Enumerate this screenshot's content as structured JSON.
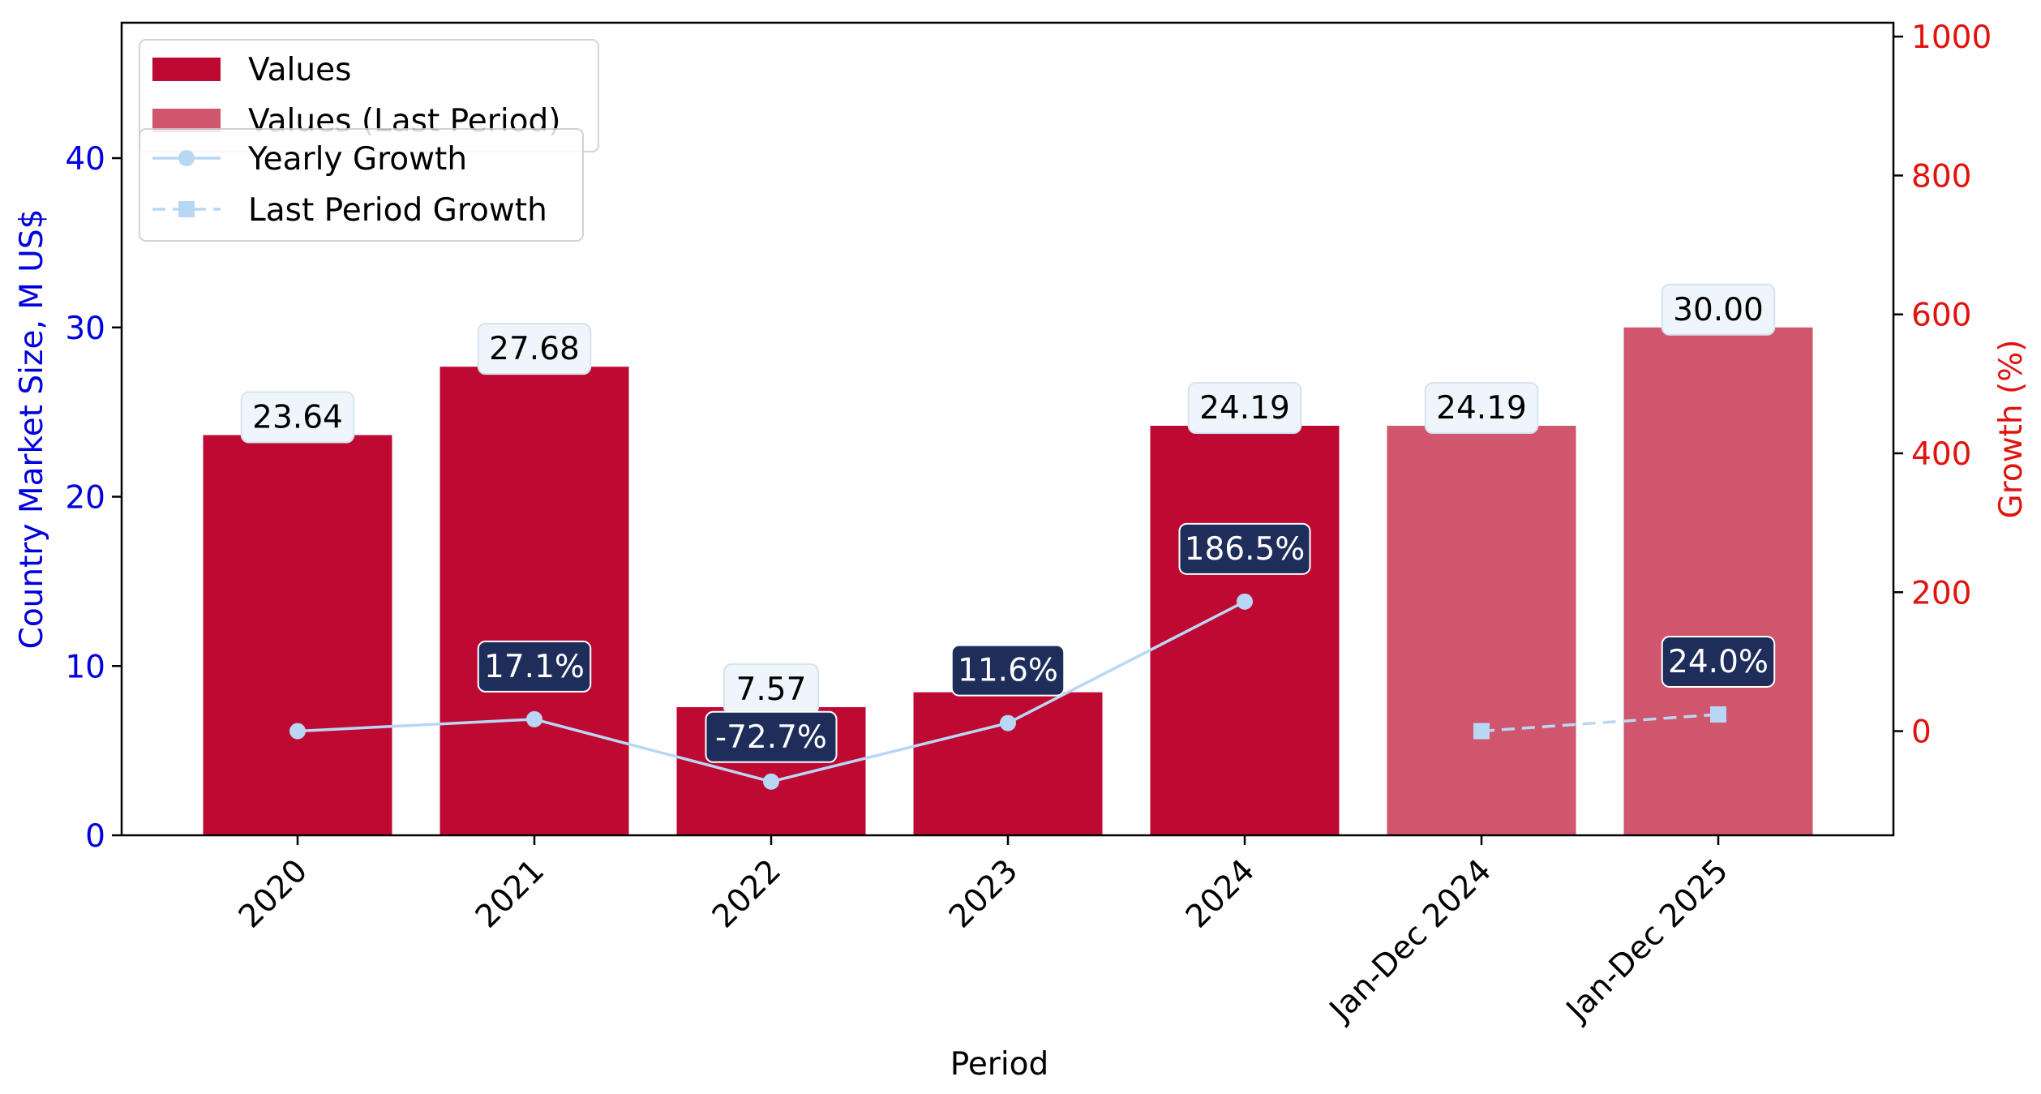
{
  "chart_data": {
    "type": "bar",
    "categories": [
      "2020",
      "2021",
      "2022",
      "2023",
      "2024",
      "Jan-Dec 2024",
      "Jan-Dec 2025"
    ],
    "xlabel": "Period",
    "ylabel": "Country Market Size, M US$",
    "y2label": "Growth (%)",
    "ylim": [
      0,
      48
    ],
    "y2lim": [
      -150,
      1020
    ],
    "yticks": [
      0,
      10,
      20,
      30,
      40
    ],
    "y2ticks": [
      0,
      200,
      400,
      600,
      800,
      1000
    ],
    "grid": false,
    "legend_placement": "top-left",
    "series": [
      {
        "name": "Values",
        "axis": "left",
        "kind": "bar",
        "color": "#BE0A32",
        "values": [
          23.64,
          27.68,
          7.57,
          8.45,
          24.19,
          null,
          null
        ],
        "labels": [
          "23.64",
          "27.68",
          "7.57",
          "",
          "24.19",
          "",
          ""
        ]
      },
      {
        "name": "Values (Last Period)",
        "axis": "left",
        "kind": "bar",
        "color": "#D0566D",
        "values": [
          null,
          null,
          null,
          null,
          null,
          24.19,
          30.0
        ],
        "labels": [
          "",
          "",
          "",
          "",
          "",
          "24.19",
          "30.00"
        ]
      },
      {
        "name": "Yearly Growth",
        "axis": "right",
        "kind": "line",
        "marker": "circle",
        "color": "#B9D7F5",
        "values": [
          0,
          17.1,
          -72.7,
          11.6,
          186.5,
          null,
          null
        ],
        "labels": [
          "",
          "17.1%",
          "-72.7%",
          "11.6%",
          "186.5%",
          "",
          ""
        ]
      },
      {
        "name": "Last Period Growth",
        "axis": "right",
        "kind": "line",
        "marker": "square",
        "dashed": true,
        "color": "#B9D7F5",
        "values": [
          null,
          null,
          null,
          null,
          null,
          0,
          24.0
        ],
        "labels": [
          "",
          "",
          "",
          "",
          "",
          "",
          "24.0%"
        ]
      }
    ],
    "colors": {
      "left_axis": "#0000DD",
      "right_axis": "#E0140F",
      "value_label_bg": "#EEF5FB",
      "growth_label_bg": "#1F2D5A"
    }
  }
}
